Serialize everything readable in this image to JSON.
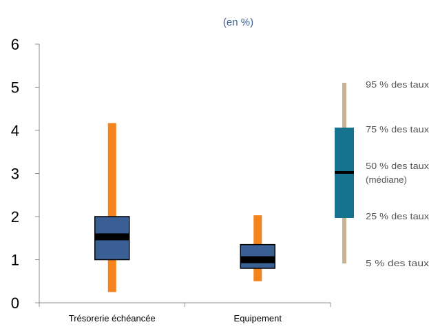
{
  "chart_data": {
    "type": "box",
    "subtitle": "(en %)",
    "ylim": [
      0,
      6
    ],
    "y_ticks": [
      "0",
      "1",
      "2",
      "3",
      "4",
      "5",
      "6"
    ],
    "grid": false,
    "categories": [
      "Trésorerie échéancée",
      "Equipement"
    ],
    "boxes": [
      {
        "category": "Trésorerie échéancée",
        "p5": 0.25,
        "p25": 1.0,
        "median": 1.53,
        "p75": 2.0,
        "p95": 4.17
      },
      {
        "category": "Equipement",
        "p5": 0.5,
        "p25": 0.8,
        "median": 1.0,
        "p75": 1.35,
        "p95": 2.03
      }
    ],
    "legend": {
      "placement": "right",
      "labels": {
        "p95": "95 % des taux",
        "p75": "75 % des taux",
        "p50_line1": "50 % des taux",
        "p50_line2": "(médiane)",
        "p25": "25 % des taux",
        "p5": "5 % des taux"
      }
    },
    "colors": {
      "whisker": "#f5841f",
      "box": "#3a5f94",
      "median": "#000000",
      "axis": "#8c8c8c",
      "subtitle": "#3a5f94",
      "legend_whisker": "#c8b491",
      "legend_box": "#16728f",
      "legend_text": "#555555"
    }
  }
}
